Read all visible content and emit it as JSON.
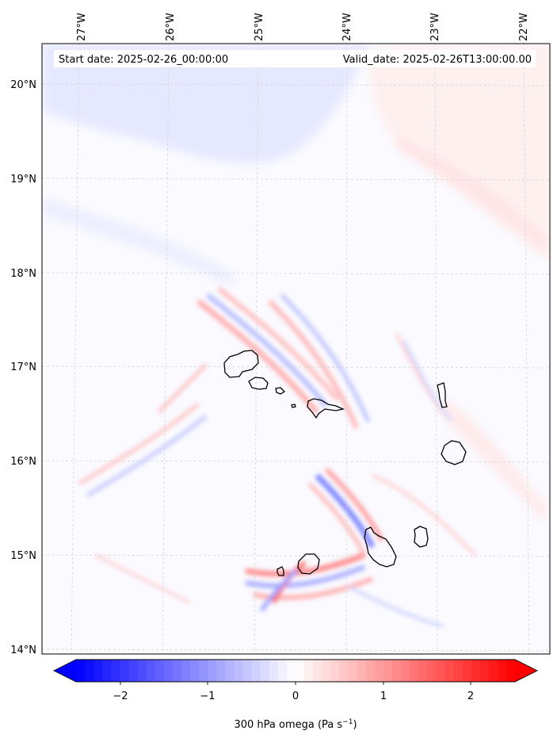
{
  "header": {
    "start_date": "Start date: 2025-02-26_00:00:00",
    "valid_date": "Valid_date: 2025-02-26T13:00:00.00"
  },
  "map": {
    "longitude_ticks": [
      "27°W",
      "26°W",
      "25°W",
      "24°W",
      "23°W",
      "22°W"
    ],
    "latitude_ticks": [
      "20°N",
      "19°N",
      "18°N",
      "17°N",
      "16°N",
      "15°N",
      "14°N"
    ],
    "gridlines": true,
    "islands": [
      "Santo Antão",
      "São Vicente",
      "Santa Luzia",
      "Branco",
      "São Nicolau",
      "Sal",
      "Boa Vista",
      "Maio",
      "Santiago",
      "Fogo",
      "Brava"
    ]
  },
  "colorbar": {
    "ticks": [
      "−2",
      "−1",
      "0",
      "1",
      "2"
    ],
    "range": [
      -2.6,
      2.6
    ],
    "negative_color": "#0000ff",
    "positive_color": "#ff0000",
    "label": "300 hPa omega (Pa s",
    "label_sup": "−1",
    "label_end": ")"
  }
}
